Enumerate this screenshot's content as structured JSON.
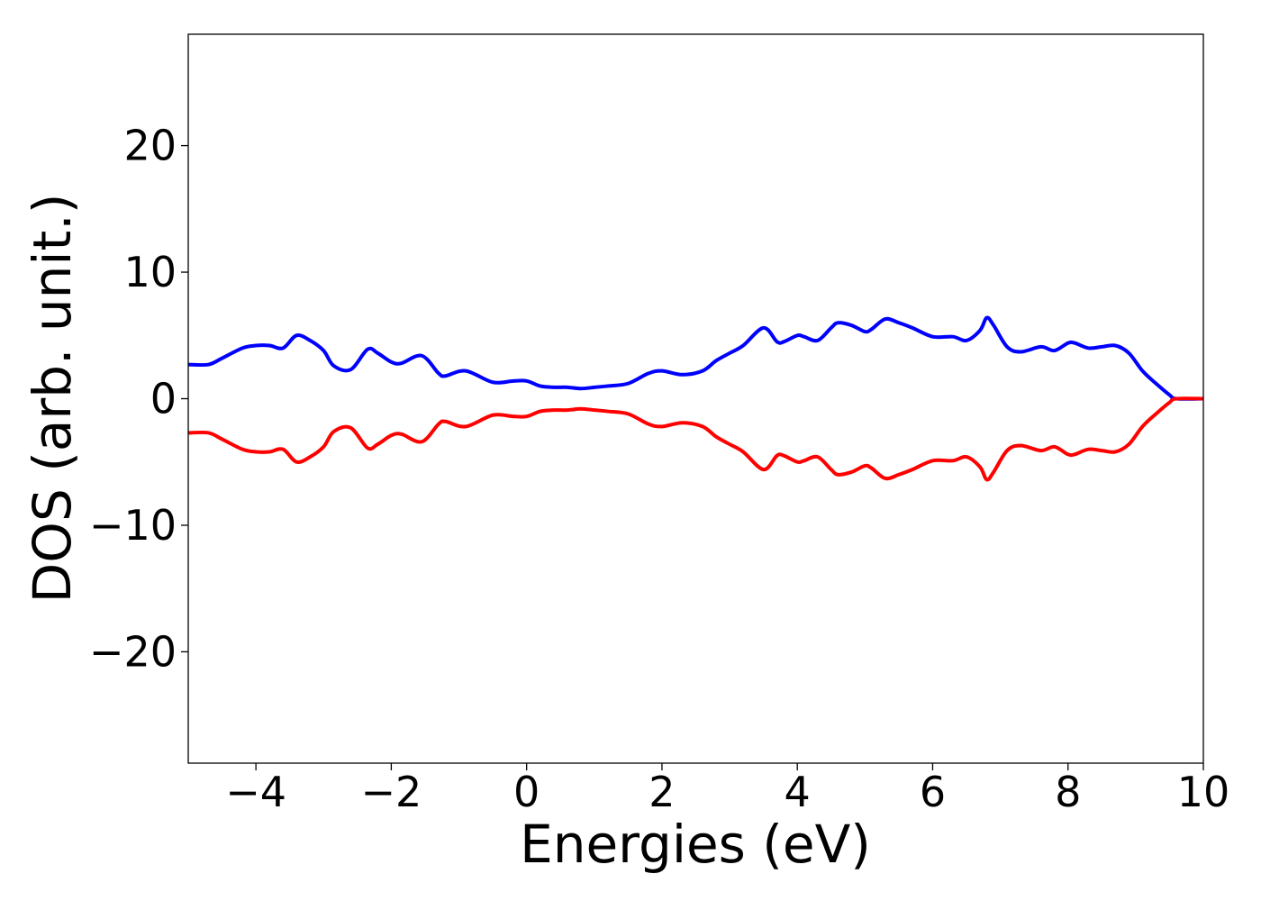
{
  "chart_data": {
    "type": "line",
    "title": "",
    "xlabel": "Energies (eV)",
    "ylabel": "DOS (arb. unit.)",
    "xlim": [
      -5,
      10
    ],
    "ylim": [
      -28.8,
      28.8
    ],
    "xticks": [
      -4,
      -2,
      0,
      2,
      4,
      6,
      8,
      10
    ],
    "xtick_labels": [
      "−4",
      "−2",
      "0",
      "2",
      "4",
      "6",
      "8",
      "10"
    ],
    "yticks": [
      -20,
      -10,
      0,
      10,
      20
    ],
    "ytick_labels": [
      "−20",
      "−10",
      "0",
      "10",
      "20"
    ],
    "grid": false,
    "legend": "none",
    "series": [
      {
        "color": "#0000ff",
        "x": [
          -5.0,
          -4.7,
          -4.5,
          -4.2,
          -4.0,
          -3.8,
          -3.6,
          -3.4,
          -3.2,
          -3.0,
          -2.85,
          -2.6,
          -2.35,
          -2.2,
          -2.0,
          -1.85,
          -1.55,
          -1.3,
          -1.2,
          -0.9,
          -0.5,
          -0.2,
          0.0,
          0.2,
          0.4,
          0.6,
          0.8,
          1.0,
          1.2,
          1.5,
          1.8,
          2.0,
          2.3,
          2.6,
          2.8,
          3.0,
          3.2,
          3.5,
          3.7,
          3.8,
          4.0,
          4.1,
          4.3,
          4.5,
          4.6,
          4.8,
          5.0,
          5.1,
          5.3,
          5.5,
          5.7,
          6.0,
          6.3,
          6.5,
          6.7,
          6.8,
          6.9,
          7.1,
          7.3,
          7.6,
          7.8,
          8.0,
          8.1,
          8.3,
          8.5,
          8.7,
          8.9,
          9.1,
          9.3,
          9.5,
          9.6,
          10.0
        ],
        "y": [
          2.7,
          2.7,
          3.2,
          4.0,
          4.2,
          4.2,
          4.0,
          5.0,
          4.6,
          3.8,
          2.6,
          2.3,
          3.9,
          3.6,
          2.9,
          2.8,
          3.4,
          2.0,
          1.8,
          2.2,
          1.3,
          1.4,
          1.4,
          1.0,
          0.9,
          0.9,
          0.8,
          0.9,
          1.0,
          1.2,
          2.0,
          2.2,
          1.9,
          2.2,
          3.0,
          3.6,
          4.2,
          5.6,
          4.5,
          4.5,
          5.0,
          4.9,
          4.6,
          5.6,
          6.0,
          5.8,
          5.3,
          5.5,
          6.3,
          6.0,
          5.6,
          4.9,
          4.9,
          4.6,
          5.4,
          6.4,
          5.8,
          4.1,
          3.7,
          4.1,
          3.8,
          4.4,
          4.4,
          4.0,
          4.1,
          4.2,
          3.6,
          2.2,
          1.2,
          0.3,
          0.0,
          0.0
        ]
      },
      {
        "color": "#ff0000",
        "x": [
          -5.0,
          -4.7,
          -4.5,
          -4.2,
          -4.0,
          -3.8,
          -3.6,
          -3.4,
          -3.2,
          -3.0,
          -2.85,
          -2.6,
          -2.35,
          -2.2,
          -2.0,
          -1.85,
          -1.55,
          -1.3,
          -1.2,
          -0.9,
          -0.5,
          -0.2,
          0.0,
          0.2,
          0.4,
          0.6,
          0.8,
          1.0,
          1.2,
          1.5,
          1.8,
          2.0,
          2.3,
          2.6,
          2.8,
          3.0,
          3.2,
          3.5,
          3.7,
          3.8,
          4.0,
          4.1,
          4.3,
          4.5,
          4.6,
          4.8,
          5.0,
          5.1,
          5.3,
          5.5,
          5.7,
          6.0,
          6.3,
          6.5,
          6.7,
          6.8,
          6.9,
          7.1,
          7.3,
          7.6,
          7.8,
          8.0,
          8.1,
          8.3,
          8.5,
          8.7,
          8.9,
          9.1,
          9.3,
          9.5,
          9.6,
          10.0
        ],
        "y": [
          -2.7,
          -2.7,
          -3.2,
          -4.0,
          -4.2,
          -4.2,
          -4.0,
          -5.0,
          -4.6,
          -3.8,
          -2.6,
          -2.3,
          -3.9,
          -3.6,
          -2.9,
          -2.8,
          -3.4,
          -2.0,
          -1.8,
          -2.2,
          -1.3,
          -1.4,
          -1.4,
          -1.0,
          -0.9,
          -0.9,
          -0.8,
          -0.9,
          -1.0,
          -1.2,
          -2.0,
          -2.2,
          -1.9,
          -2.2,
          -3.0,
          -3.6,
          -4.2,
          -5.6,
          -4.5,
          -4.5,
          -5.0,
          -4.9,
          -4.6,
          -5.6,
          -6.0,
          -5.8,
          -5.3,
          -5.5,
          -6.3,
          -6.0,
          -5.6,
          -4.9,
          -4.9,
          -4.6,
          -5.4,
          -6.4,
          -5.8,
          -4.1,
          -3.7,
          -4.1,
          -3.8,
          -4.4,
          -4.4,
          -4.0,
          -4.1,
          -4.2,
          -3.6,
          -2.2,
          -1.2,
          -0.3,
          0.0,
          0.0
        ]
      }
    ]
  }
}
